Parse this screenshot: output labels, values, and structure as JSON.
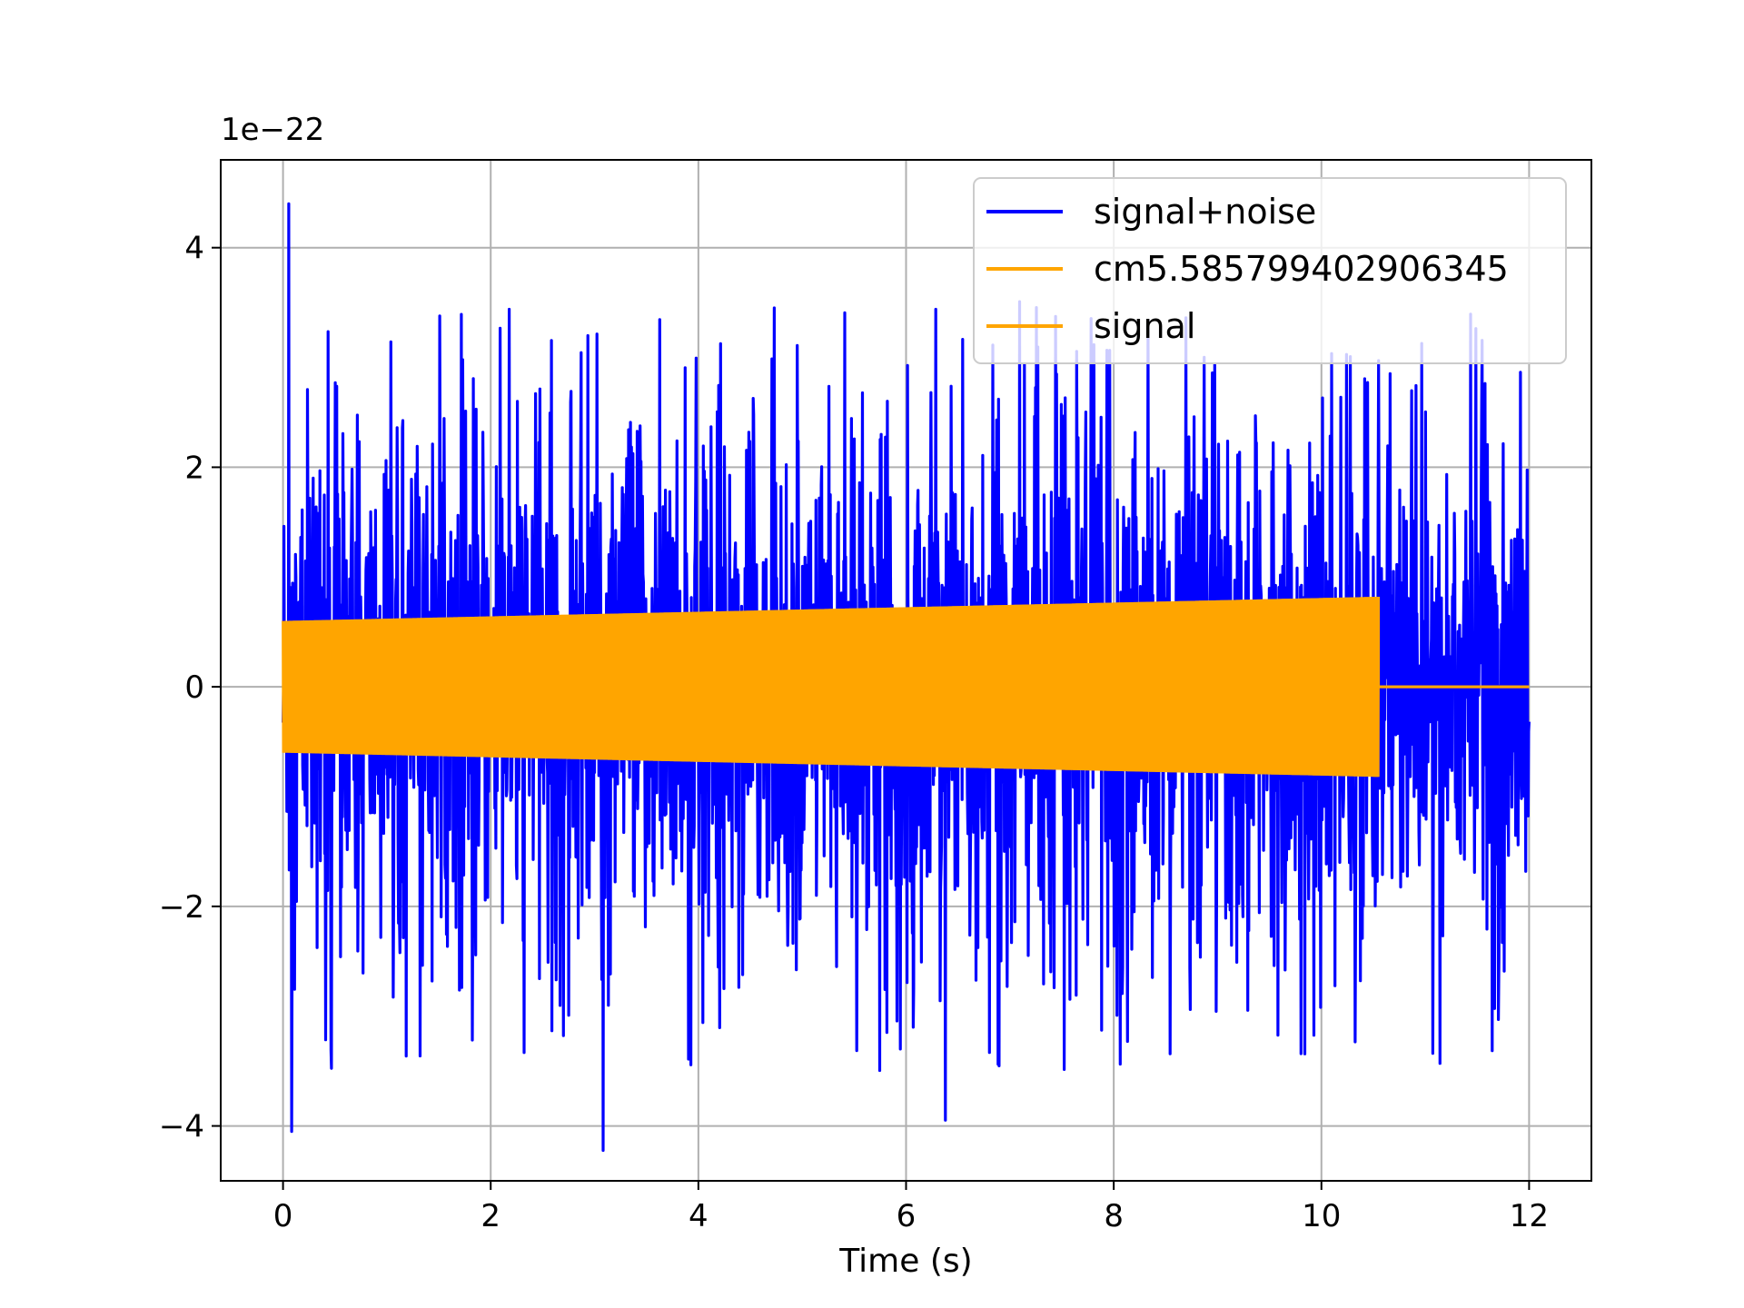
{
  "chart_data": {
    "type": "line",
    "title": "",
    "xlabel": "Time (s)",
    "ylabel": "",
    "y_offset_label": "1e−22",
    "y_scale": 1e-22,
    "xlim": [
      -0.6,
      12.6
    ],
    "ylim": [
      -4.5,
      4.8
    ],
    "xticks": [
      0,
      2,
      4,
      6,
      8,
      10,
      12
    ],
    "xtick_labels": [
      "0",
      "2",
      "4",
      "6",
      "8",
      "10",
      "12"
    ],
    "yticks": [
      -4,
      -2,
      0,
      2,
      4
    ],
    "ytick_labels": [
      "−4",
      "−2",
      "0",
      "2",
      "4"
    ],
    "grid": true,
    "legend_position": "upper right",
    "series": [
      {
        "name": "signal+noise",
        "color": "#0000ff",
        "x_range": [
          0,
          12
        ],
        "envelope": {
          "typical_amplitude": 1.4,
          "peak_max": 4.4,
          "peak_min": -4.05
        }
      },
      {
        "name": "cm5.585799402906345",
        "color": "#ffa500",
        "x_range": [
          0,
          12
        ],
        "envelope": {
          "start_amplitude": 0.6,
          "end_amplitude": 0.82,
          "end_x": 10.55,
          "zero_after_end": true
        }
      },
      {
        "name": "signal",
        "color": "#ffa500",
        "x_range": [
          0,
          12
        ],
        "envelope": {
          "start_amplitude": 0.6,
          "end_amplitude": 0.82,
          "end_x": 10.55,
          "zero_after_end": true
        }
      }
    ]
  }
}
